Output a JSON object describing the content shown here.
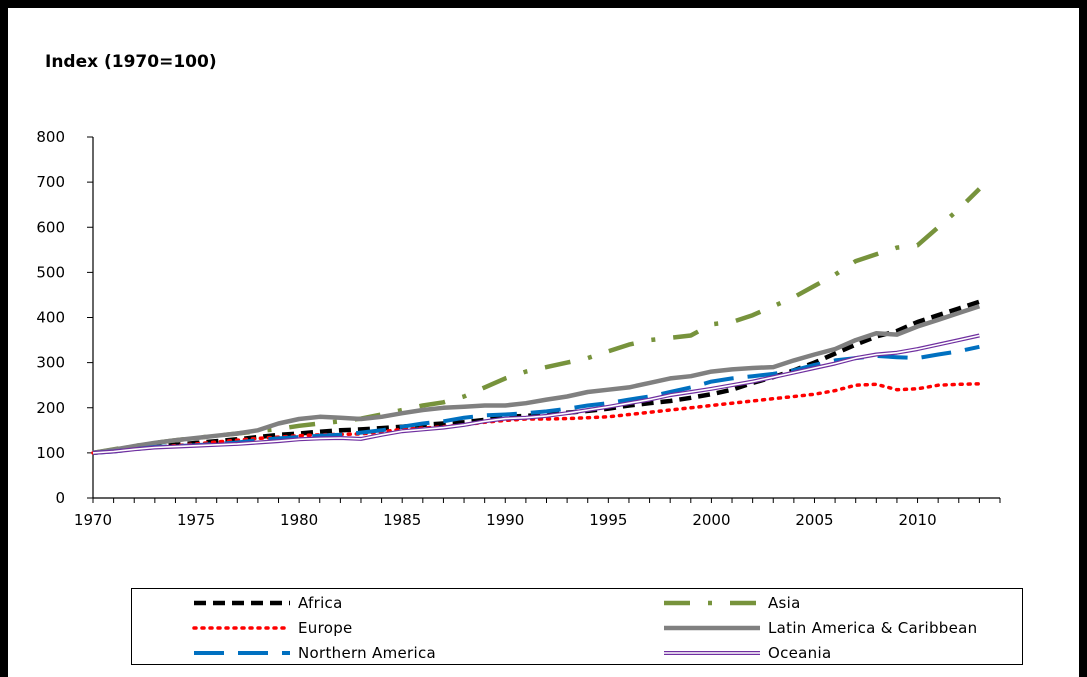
{
  "chart_data": {
    "type": "line",
    "title": "",
    "ylabel": "Index (1970=100)",
    "xlabel": "",
    "xlim": [
      1970,
      2014
    ],
    "ylim": [
      0,
      800
    ],
    "x_ticks": [
      1970,
      1975,
      1980,
      1985,
      1990,
      1995,
      2000,
      2005,
      2010
    ],
    "y_ticks": [
      0,
      100,
      200,
      300,
      400,
      500,
      600,
      700,
      800
    ],
    "grid": false,
    "legend_position": "bottom",
    "x": [
      1970,
      1971,
      1972,
      1973,
      1974,
      1975,
      1976,
      1977,
      1978,
      1979,
      1980,
      1981,
      1982,
      1983,
      1984,
      1985,
      1986,
      1987,
      1988,
      1989,
      1990,
      1991,
      1992,
      1993,
      1994,
      1995,
      1996,
      1997,
      1998,
      1999,
      2000,
      2001,
      2002,
      2003,
      2004,
      2005,
      2006,
      2007,
      2008,
      2009,
      2010,
      2011,
      2012,
      2013
    ],
    "series": [
      {
        "name": "Africa",
        "color": "#000000",
        "style": "dashed-thick",
        "values": [
          100,
          105,
          110,
          115,
          118,
          122,
          126,
          130,
          135,
          140,
          143,
          147,
          150,
          152,
          155,
          158,
          162,
          165,
          168,
          173,
          180,
          182,
          185,
          189,
          193,
          198,
          205,
          210,
          215,
          222,
          230,
          240,
          255,
          268,
          283,
          300,
          320,
          340,
          358,
          370,
          390,
          405,
          420,
          435
        ]
      },
      {
        "name": "Asia",
        "color": "#77933C",
        "style": "dash-dot",
        "values": [
          100,
          108,
          115,
          122,
          128,
          133,
          138,
          143,
          148,
          153,
          160,
          165,
          170,
          176,
          185,
          195,
          205,
          212,
          225,
          245,
          265,
          280,
          290,
          300,
          310,
          325,
          340,
          350,
          355,
          360,
          385,
          390,
          405,
          425,
          445,
          470,
          495,
          525,
          540,
          555,
          560,
          600,
          640,
          685
        ]
      },
      {
        "name": "Europe",
        "color": "#FF0000",
        "style": "dotted",
        "values": [
          100,
          104,
          108,
          112,
          116,
          120,
          124,
          128,
          132,
          135,
          138,
          140,
          141,
          142,
          147,
          152,
          155,
          158,
          162,
          168,
          172,
          175,
          175,
          176,
          178,
          180,
          185,
          190,
          195,
          200,
          205,
          210,
          215,
          220,
          225,
          230,
          238,
          250,
          252,
          240,
          242,
          250,
          252,
          253
        ]
      },
      {
        "name": "Latin America & Caribbean",
        "color": "#808080",
        "style": "solid-thick",
        "values": [
          100,
          107,
          115,
          122,
          128,
          133,
          138,
          143,
          150,
          165,
          175,
          180,
          178,
          175,
          180,
          188,
          195,
          200,
          202,
          205,
          205,
          210,
          218,
          225,
          235,
          240,
          245,
          255,
          265,
          270,
          280,
          285,
          288,
          290,
          305,
          318,
          330,
          350,
          365,
          362,
          380,
          395,
          410,
          425
        ]
      },
      {
        "name": "Northern America",
        "color": "#0070C0",
        "style": "long-dash",
        "values": [
          100,
          103,
          108,
          113,
          115,
          117,
          120,
          123,
          128,
          132,
          135,
          138,
          140,
          145,
          150,
          158,
          165,
          170,
          178,
          183,
          185,
          188,
          192,
          198,
          205,
          210,
          218,
          225,
          235,
          245,
          258,
          265,
          270,
          275,
          283,
          295,
          305,
          310,
          315,
          312,
          310,
          318,
          325,
          335
        ]
      },
      {
        "name": "Oceania",
        "color": "#7030A0",
        "style": "double",
        "values": [
          100,
          103,
          108,
          112,
          114,
          116,
          118,
          120,
          123,
          126,
          130,
          132,
          133,
          131,
          140,
          148,
          152,
          156,
          162,
          170,
          176,
          178,
          182,
          188,
          195,
          202,
          210,
          218,
          228,
          235,
          242,
          250,
          258,
          268,
          278,
          288,
          298,
          310,
          318,
          322,
          330,
          340,
          350,
          360
        ]
      }
    ]
  }
}
